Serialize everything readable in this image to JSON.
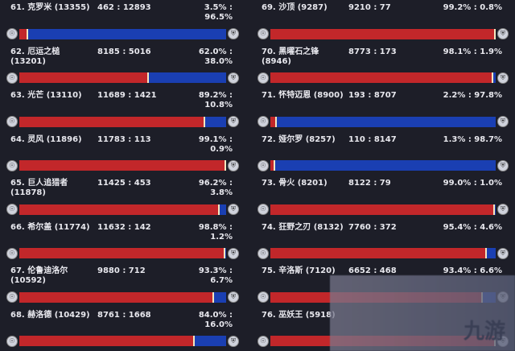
{
  "colors": {
    "horde": "#c2272a",
    "alliance": "#1a3fb2",
    "background": "#1d1e28"
  },
  "icons": {
    "left": "horde-icon",
    "right": "alliance-icon"
  },
  "chart_data": {
    "type": "bar",
    "stacked": true,
    "orientation": "horizontal",
    "rows": [
      {
        "rank": "61.",
        "name": "克罗米",
        "pop": "(13355)",
        "ratio": "462 : 12893",
        "pct": "3.5% : 96.5%",
        "horde": 3.5
      },
      {
        "rank": "62.",
        "name": "厄运之槌",
        "pop": "(13201)",
        "ratio": "8185 : 5016",
        "pct": "62.0% : 38.0%",
        "horde": 62.0
      },
      {
        "rank": "63.",
        "name": "光芒",
        "pop": "(13110)",
        "ratio": "11689 : 1421",
        "pct": "89.2% : 10.8%",
        "horde": 89.2
      },
      {
        "rank": "64.",
        "name": "灵风",
        "pop": "(11896)",
        "ratio": "11783 : 113",
        "pct": "99.1% : 0.9%",
        "horde": 99.1
      },
      {
        "rank": "65.",
        "name": "巨人追猎者",
        "pop": "(11878)",
        "ratio": "11425 : 453",
        "pct": "96.2% : 3.8%",
        "horde": 96.2
      },
      {
        "rank": "66.",
        "name": "希尔盖",
        "pop": "(11774)",
        "ratio": "11632 : 142",
        "pct": "98.8% : 1.2%",
        "horde": 98.8
      },
      {
        "rank": "67.",
        "name": "伦鲁迪洛尔",
        "pop": "(10592)",
        "ratio": "9880 : 712",
        "pct": "93.3% : 6.7%",
        "horde": 93.3
      },
      {
        "rank": "68.",
        "name": "赫洛德",
        "pop": "(10429)",
        "ratio": "8761 : 1668",
        "pct": "84.0% : 16.0%",
        "horde": 84.0
      },
      {
        "rank": "69.",
        "name": "沙顶",
        "pop": "(9287)",
        "ratio": "9210 : 77",
        "pct": "99.2% : 0.8%",
        "horde": 99.2
      },
      {
        "rank": "70.",
        "name": "黑曜石之锋",
        "pop": "(8946)",
        "ratio": "8773 : 173",
        "pct": "98.1% : 1.9%",
        "horde": 98.1
      },
      {
        "rank": "71.",
        "name": "怀特迈恩",
        "pop": "(8900)",
        "ratio": "193 : 8707",
        "pct": "2.2% : 97.8%",
        "horde": 2.2
      },
      {
        "rank": "72.",
        "name": "娅尔罗",
        "pop": "(8257)",
        "ratio": "110 : 8147",
        "pct": "1.3% : 98.7%",
        "horde": 1.3
      },
      {
        "rank": "73.",
        "name": "骨火",
        "pop": "(8201)",
        "ratio": "8122 : 79",
        "pct": "99.0% : 1.0%",
        "horde": 99.0
      },
      {
        "rank": "74.",
        "name": "狂野之刃",
        "pop": "(8132)",
        "ratio": "7760 : 372",
        "pct": "95.4% : 4.6%",
        "horde": 95.4
      },
      {
        "rank": "75.",
        "name": "辛洛斯",
        "pop": "(7120)",
        "ratio": "6652 : 468",
        "pct": "93.4% : 6.6%",
        "horde": 93.4
      },
      {
        "rank": "76.",
        "name": "巫妖王",
        "pop": "(5918)",
        "ratio": "",
        "pct": "",
        "horde": null
      }
    ]
  },
  "watermark": "九游"
}
